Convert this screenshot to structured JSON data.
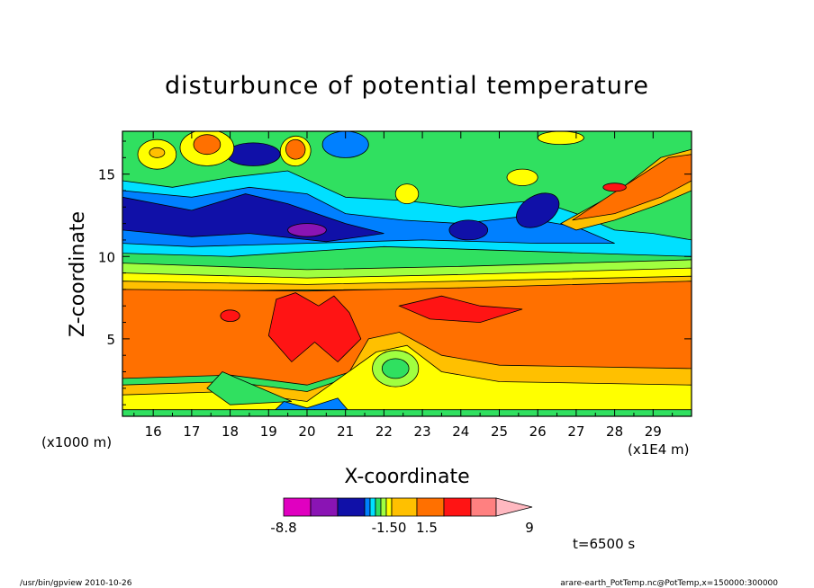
{
  "chart_data": {
    "type": "heatmap",
    "subtype": "filled-contour",
    "title": "disturbunce of potential temperature",
    "xlabel": "X-coordinate",
    "ylabel": "Z-coordinate",
    "x_unit_label": "(x1000 m)",
    "x_scale_label": "(x1E4 m)",
    "time_label": "t=6500 s",
    "xlim": [
      15.2,
      30.0
    ],
    "ylim": [
      0.3,
      17.6
    ],
    "x_ticks": [
      16,
      17,
      18,
      19,
      20,
      21,
      22,
      23,
      24,
      25,
      26,
      27,
      28,
      29
    ],
    "y_ticks": [
      5,
      10,
      15
    ],
    "colorbar": {
      "tick_labels": [
        "-8.8",
        "-1.50",
        "1.5",
        "9"
      ],
      "colors": [
        "#e000c0",
        "#8a14b4",
        "#1010a8",
        "#0080ff",
        "#00e0ff",
        "#30e060",
        "#a0ff40",
        "#ffff00",
        "#ffc000",
        "#ff7000",
        "#ff1414",
        "#ff8080",
        "#ffb8c0"
      ]
    },
    "field": {
      "description_colors": {
        "magenta": "#e000c0",
        "purple": "#8a14b4",
        "navy": "#1010a8",
        "blue": "#0080ff",
        "cyan": "#00e0ff",
        "green": "#30e060",
        "lightgreen": "#a0ff40",
        "yellow": "#ffff00",
        "gold": "#ffc000",
        "orange": "#ff7000",
        "red": "#ff1414",
        "pink": "#ff8080"
      }
    }
  },
  "footer": {
    "left": "/usr/bin/gpview   2010-10-26",
    "right": "arare-earth_PotTemp.nc@PotTemp,x=150000:300000"
  }
}
